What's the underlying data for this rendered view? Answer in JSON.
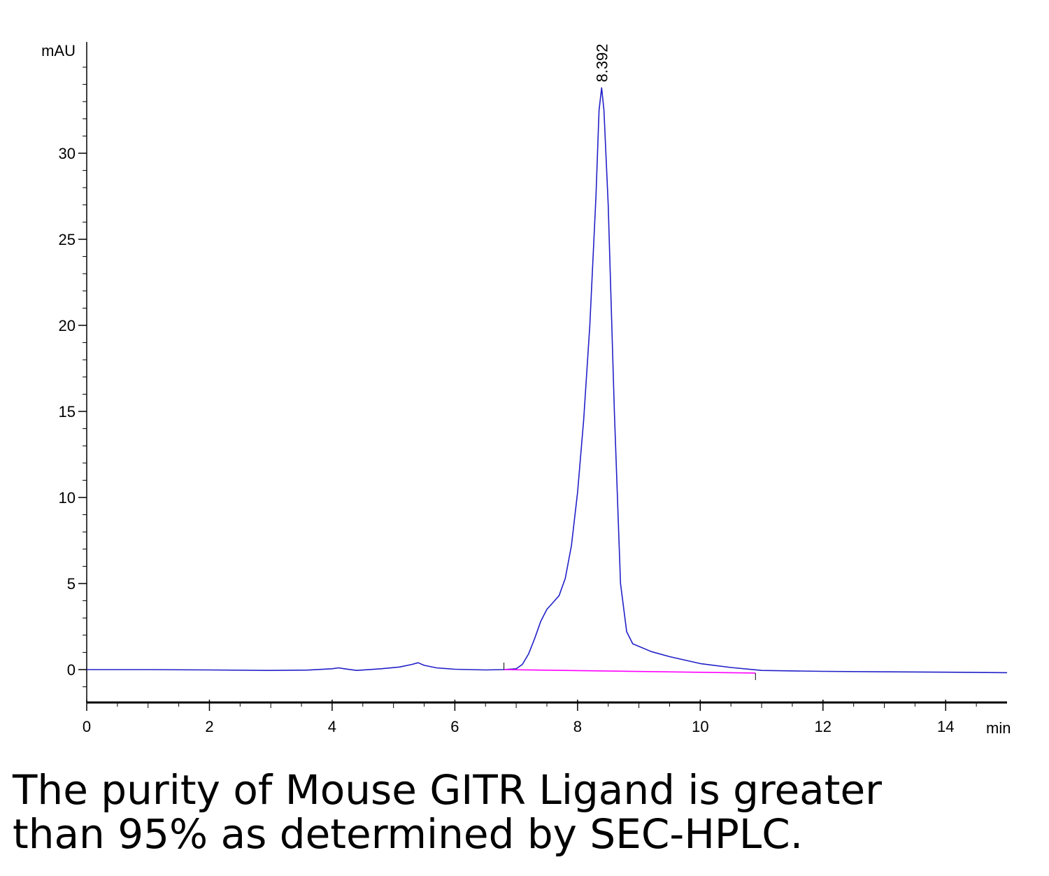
{
  "chart_data": {
    "type": "line",
    "xlabel": "min",
    "ylabel": "mAU",
    "xlim": [
      0,
      15
    ],
    "ylim": [
      -2,
      36
    ],
    "x_ticks": [
      0,
      2,
      4,
      6,
      8,
      10,
      12,
      14
    ],
    "y_ticks": [
      0,
      5,
      10,
      15,
      20,
      25,
      30
    ],
    "series": [
      {
        "color": "#2020c8",
        "points": [
          [
            0.0,
            0.0
          ],
          [
            1.0,
            0.0
          ],
          [
            2.0,
            -0.02
          ],
          [
            3.0,
            -0.05
          ],
          [
            3.6,
            -0.03
          ],
          [
            4.0,
            0.05
          ],
          [
            4.1,
            0.1
          ],
          [
            4.2,
            0.05
          ],
          [
            4.4,
            -0.05
          ],
          [
            4.8,
            0.05
          ],
          [
            5.1,
            0.15
          ],
          [
            5.3,
            0.3
          ],
          [
            5.4,
            0.4
          ],
          [
            5.5,
            0.25
          ],
          [
            5.7,
            0.1
          ],
          [
            6.0,
            0.02
          ],
          [
            6.5,
            -0.02
          ],
          [
            6.8,
            0.0
          ],
          [
            7.0,
            0.05
          ],
          [
            7.1,
            0.3
          ],
          [
            7.2,
            0.9
          ],
          [
            7.3,
            1.8
          ],
          [
            7.4,
            2.8
          ],
          [
            7.5,
            3.5
          ],
          [
            7.6,
            3.9
          ],
          [
            7.7,
            4.3
          ],
          [
            7.8,
            5.3
          ],
          [
            7.9,
            7.2
          ],
          [
            8.0,
            10.3
          ],
          [
            8.1,
            14.5
          ],
          [
            8.2,
            20.0
          ],
          [
            8.3,
            27.5
          ],
          [
            8.35,
            32.5
          ],
          [
            8.392,
            33.8
          ],
          [
            8.43,
            32.5
          ],
          [
            8.5,
            27.0
          ],
          [
            8.6,
            15.0
          ],
          [
            8.7,
            5.0
          ],
          [
            8.8,
            2.2
          ],
          [
            8.9,
            1.5
          ],
          [
            9.2,
            1.05
          ],
          [
            9.5,
            0.75
          ],
          [
            10.0,
            0.35
          ],
          [
            10.5,
            0.12
          ],
          [
            11.0,
            -0.05
          ],
          [
            12.0,
            -0.1
          ],
          [
            13.0,
            -0.13
          ],
          [
            14.0,
            -0.15
          ],
          [
            15.0,
            -0.18
          ]
        ]
      },
      {
        "color": "#ff00ff",
        "points": [
          [
            6.8,
            0.0
          ],
          [
            10.9,
            -0.2
          ]
        ]
      }
    ],
    "annotations": [
      {
        "text": "8.392",
        "x": 8.392,
        "y": 33.8
      }
    ],
    "grid": false
  },
  "caption": {
    "line1": "The purity of Mouse GITR Ligand is greater",
    "line2": "than 95% as determined by SEC-HPLC."
  }
}
